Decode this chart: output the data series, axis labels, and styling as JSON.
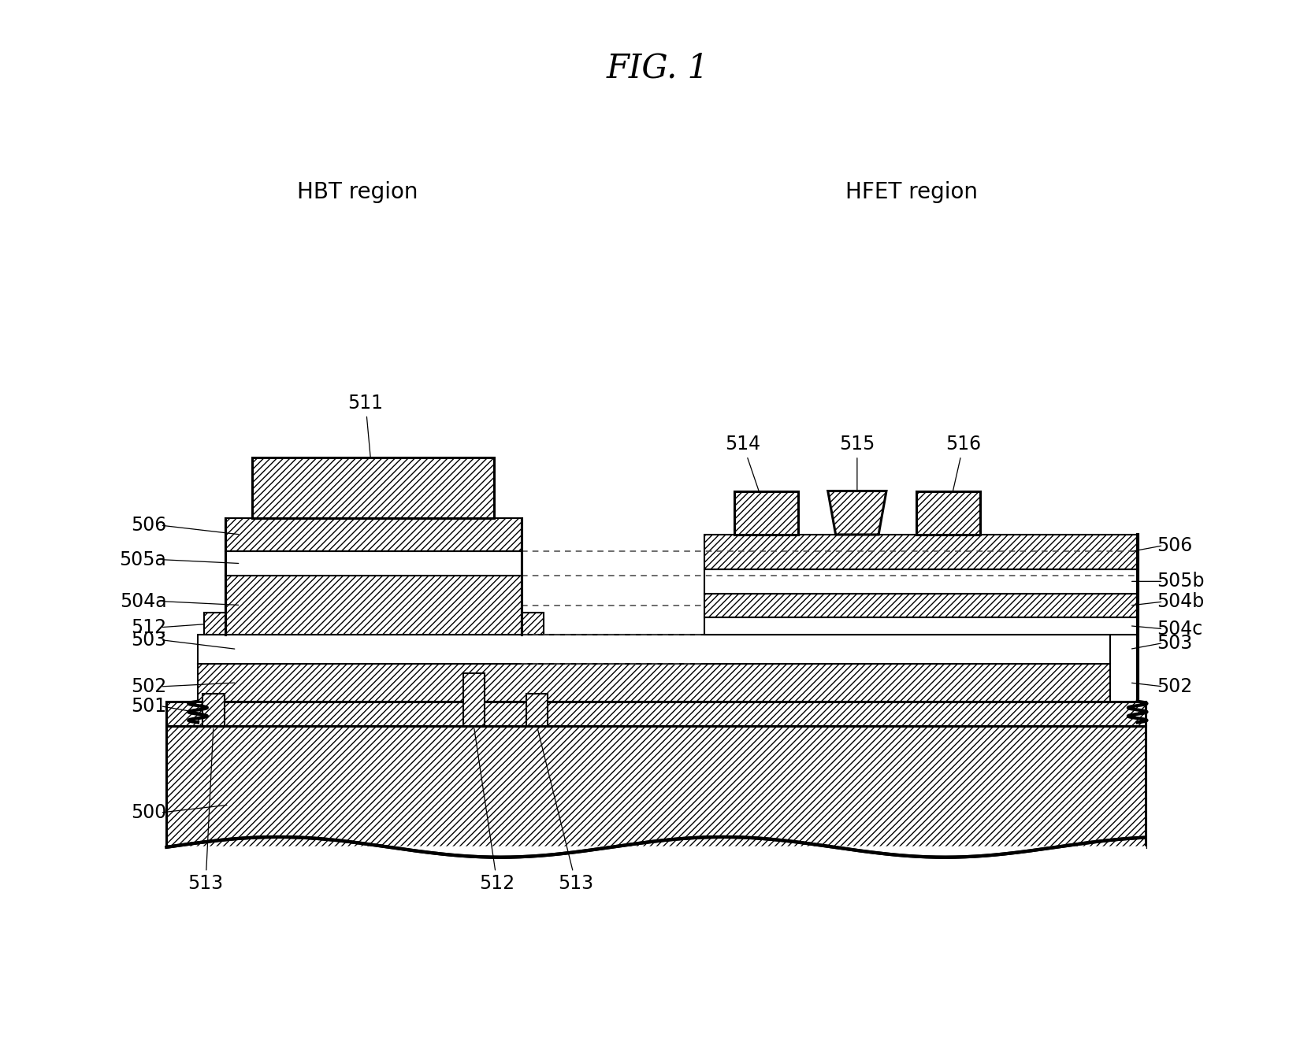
{
  "title": "FIG. 1",
  "title_fontsize": 30,
  "fig_width": 16.69,
  "fig_height": 13.5,
  "background_color": "#ffffff",
  "hbt_region_label": "HBT region",
  "hfet_region_label": "HFET region",
  "region_label_fontsize": 20,
  "label_fontsize": 17,
  "line_color": "#000000",
  "dashed_line_color": "#555555"
}
